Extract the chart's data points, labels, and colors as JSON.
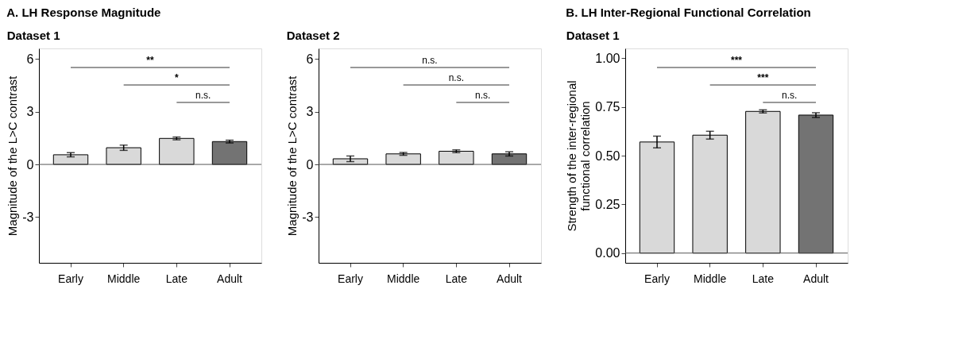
{
  "chart_data": [
    {
      "type": "bar",
      "title": "A. LH Response Magnitude",
      "subtitle": "Dataset 1",
      "ylabel": "Magnitude of the L>C contrast",
      "categories": [
        "Early",
        "Middle",
        "Late",
        "Adult"
      ],
      "values": [
        0.55,
        0.95,
        1.48,
        1.3
      ],
      "errors": [
        0.12,
        0.15,
        0.08,
        0.08
      ],
      "colors": [
        "#d9d9d9",
        "#d9d9d9",
        "#d9d9d9",
        "#737373"
      ],
      "ylim": [
        -5.6,
        6.6
      ],
      "yticks": [
        -3,
        0,
        3,
        6
      ],
      "grid": false,
      "ref_lines": [
        {
          "axis": "y",
          "value": 0
        }
      ],
      "annotations": [
        "**",
        "*",
        "n.s."
      ]
    },
    {
      "type": "bar",
      "subtitle": "Dataset 2",
      "ylabel": "Magnitude of the L>C contrast",
      "categories": [
        "Early",
        "Middle",
        "Late",
        "Adult"
      ],
      "values": [
        0.32,
        0.6,
        0.75,
        0.6
      ],
      "errors": [
        0.16,
        0.08,
        0.08,
        0.12
      ],
      "colors": [
        "#d9d9d9",
        "#d9d9d9",
        "#d9d9d9",
        "#737373"
      ],
      "ylim": [
        -5.6,
        6.6
      ],
      "yticks": [
        -3,
        0,
        3,
        6
      ],
      "grid": false,
      "ref_lines": [
        {
          "axis": "y",
          "value": 0
        }
      ],
      "annotations": [
        "n.s.",
        "n.s.",
        "n.s."
      ]
    },
    {
      "type": "bar",
      "title": "B. LH Inter-Regional Functional Correlation",
      "subtitle": "Dataset 1",
      "ylabel": "Strength of the inter-regional functional correlation",
      "categories": [
        "Early",
        "Middle",
        "Late",
        "Adult"
      ],
      "values": [
        0.57,
        0.605,
        0.727,
        0.708
      ],
      "errors": [
        0.03,
        0.02,
        0.008,
        0.012
      ],
      "colors": [
        "#d9d9d9",
        "#d9d9d9",
        "#d9d9d9",
        "#737373"
      ],
      "ylim": [
        -0.05,
        1.05
      ],
      "yticks": [
        {
          "value": 0,
          "label": "0.00"
        },
        0.25,
        {
          "value": 0.5,
          "label": "0.50"
        },
        0.75,
        {
          "value": 1,
          "label": "1.00"
        }
      ],
      "grid": false,
      "ref_lines": [
        {
          "axis": "y",
          "value": 0
        }
      ],
      "annotations": [
        "***",
        "***",
        "n.s."
      ]
    }
  ]
}
